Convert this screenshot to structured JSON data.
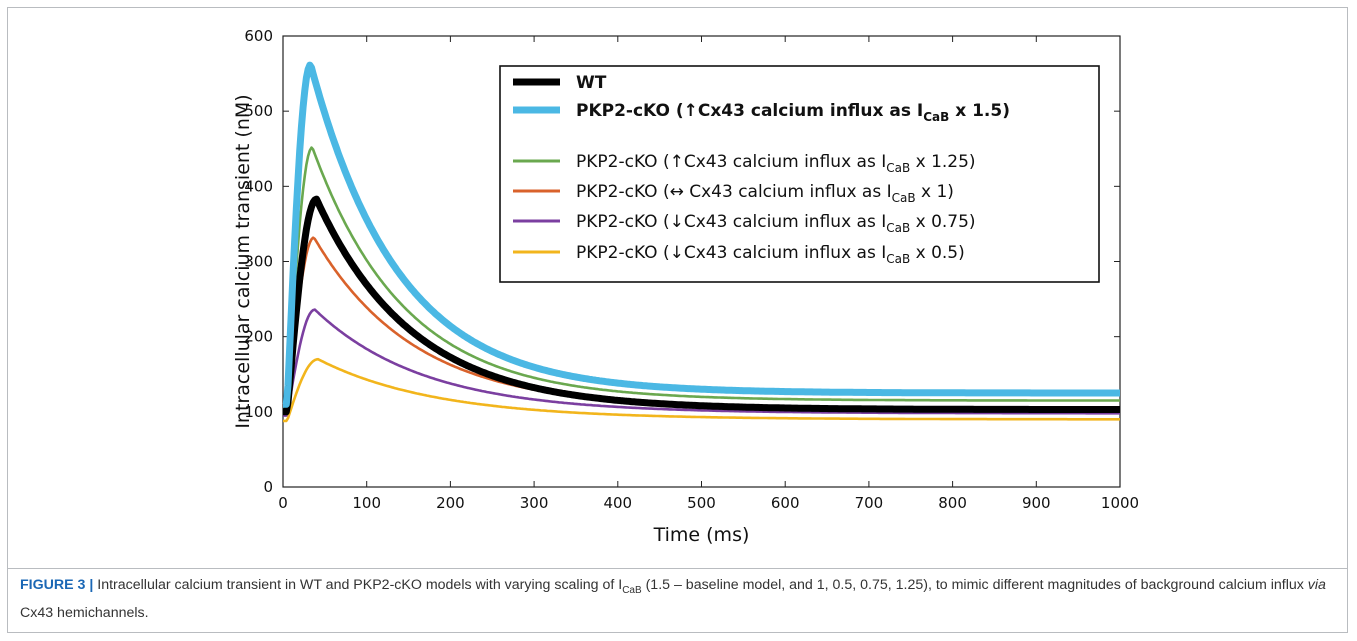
{
  "chart_data": {
    "type": "line",
    "xlabel": "Time (ms)",
    "ylabel": "Intracellular calcium transient (nM)",
    "xlim": [
      0,
      1000
    ],
    "ylim": [
      0,
      600
    ],
    "xticks": [
      "0",
      "100",
      "200",
      "300",
      "400",
      "500",
      "600",
      "700",
      "800",
      "900",
      "1000"
    ],
    "yticks": [
      "0",
      "100",
      "200",
      "300",
      "400",
      "500",
      "600"
    ],
    "grid": false,
    "legend_position": "top-right",
    "series": [
      {
        "name": "WT",
        "color": "#000000",
        "bold": true,
        "label_prefix": "WT",
        "label_sub": "",
        "label_suffix": "",
        "peak": 383,
        "peak_time": 40,
        "baseline": 100,
        "final": 103,
        "tau": 115
      },
      {
        "name": "PKP2-cKO (↑Cx43 calcium influx as ICaB x 1.5)",
        "color": "#4bb8e4",
        "bold": true,
        "label_prefix": "PKP2-cKO (↑Cx43 calcium influx as I",
        "label_sub": "CaB",
        "label_suffix": " x 1.5)",
        "peak": 562,
        "peak_time": 33,
        "baseline": 110,
        "final": 125,
        "tau": 105
      },
      {
        "name": "PKP2-cKO (↑Cx43 calcium influx as ICaB x 1.25)",
        "color": "#6aa84f",
        "bold": false,
        "label_prefix": "PKP2-cKO (↑Cx43 calcium influx  as I",
        "label_sub": "CaB",
        "label_suffix": " x 1.25)",
        "peak": 452,
        "peak_time": 35,
        "baseline": 105,
        "final": 115,
        "tau": 110
      },
      {
        "name": "PKP2-cKO (↔ Cx43 calcium influx as ICaB x 1)",
        "color": "#d9622b",
        "bold": false,
        "label_prefix": "PKP2-cKO (↔ Cx43 calcium influx as I",
        "label_sub": "CaB",
        "label_suffix": " x 1)",
        "peak": 332,
        "peak_time": 37,
        "baseline": 100,
        "final": 104,
        "tau": 120
      },
      {
        "name": "PKP2-cKO (↓Cx43 calcium influx as ICaB x 0.75)",
        "color": "#7b3fa0",
        "bold": false,
        "label_prefix": "PKP2-cKO (↓Cx43 calcium influx as I",
        "label_sub": "CaB",
        "label_suffix": " x 0.75)",
        "peak": 236,
        "peak_time": 38,
        "baseline": 95,
        "final": 98,
        "tau": 130
      },
      {
        "name": "PKP2-cKO (↓Cx43 calcium influx as ICaB x 0.5)",
        "color": "#f2b51c",
        "bold": false,
        "label_prefix": "PKP2-cKO (↓Cx43 calcium influx as I",
        "label_sub": "CaB",
        "label_suffix": " x 0.5)",
        "peak": 170,
        "peak_time": 42,
        "baseline": 88,
        "final": 90,
        "tau": 140
      }
    ]
  },
  "caption": {
    "label": "FIGURE 3 |",
    "text_1": " Intracellular calcium transient in WT and PKP2-cKO models with varying scaling of I",
    "sub": "CaB",
    "text_2": " (1.5 – baseline model, and 1, 0.5, 0.75, 1.25), to mimic different magnitudes of background calcium influx ",
    "italic": "via",
    "text_3": " Cx43 hemichannels."
  }
}
